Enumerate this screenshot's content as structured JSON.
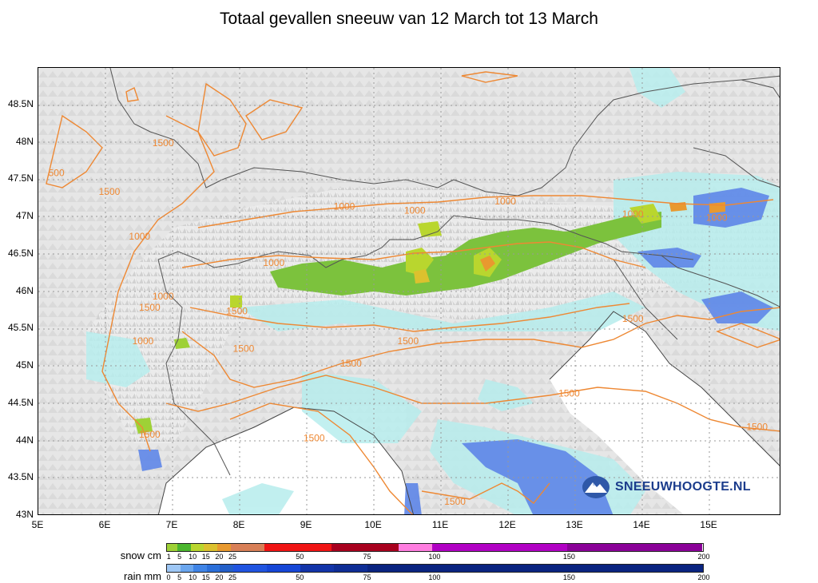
{
  "title": "Totaal gevallen sneeuw van 12 March tot 13 March",
  "map": {
    "lat_labels": [
      "48.5N",
      "48N",
      "47.5N",
      "47N",
      "46.5N",
      "46N",
      "45.5N",
      "45N",
      "44.5N",
      "44N",
      "43.5N",
      "43N"
    ],
    "lon_labels": [
      "5E",
      "6E",
      "7E",
      "8E",
      "9E",
      "10E",
      "11E",
      "12E",
      "13E",
      "14E",
      "15E"
    ],
    "contour_labels": [
      {
        "text": "1500",
        "lon": 6.7,
        "lat": 47.95
      },
      {
        "text": "500",
        "lon": 5.15,
        "lat": 47.55
      },
      {
        "text": "1500",
        "lon": 5.9,
        "lat": 47.3
      },
      {
        "text": "1000",
        "lon": 6.35,
        "lat": 46.7
      },
      {
        "text": "1000",
        "lon": 9.4,
        "lat": 47.1
      },
      {
        "text": "1000",
        "lon": 10.45,
        "lat": 47.05
      },
      {
        "text": "1000",
        "lon": 11.8,
        "lat": 47.17
      },
      {
        "text": "1000",
        "lon": 13.7,
        "lat": 47.0
      },
      {
        "text": "1000",
        "lon": 14.95,
        "lat": 46.95
      },
      {
        "text": "1000",
        "lon": 8.35,
        "lat": 46.35
      },
      {
        "text": "1000",
        "lon": 6.7,
        "lat": 45.9
      },
      {
        "text": "1500",
        "lon": 6.5,
        "lat": 45.75
      },
      {
        "text": "1500",
        "lon": 7.8,
        "lat": 45.7
      },
      {
        "text": "1000",
        "lon": 6.4,
        "lat": 45.3
      },
      {
        "text": "1500",
        "lon": 7.9,
        "lat": 45.2
      },
      {
        "text": "1500",
        "lon": 9.5,
        "lat": 45.0
      },
      {
        "text": "1500",
        "lon": 10.35,
        "lat": 45.3
      },
      {
        "text": "1500",
        "lon": 12.75,
        "lat": 44.6
      },
      {
        "text": "1500",
        "lon": 13.7,
        "lat": 45.6
      },
      {
        "text": "1500",
        "lon": 15.55,
        "lat": 44.15
      },
      {
        "text": "1500",
        "lon": 6.5,
        "lat": 44.05
      },
      {
        "text": "1500",
        "lon": 8.95,
        "lat": 44.0
      },
      {
        "text": "1500",
        "lon": 11.05,
        "lat": 43.15
      }
    ]
  },
  "logo": {
    "text": "SNEEUWHOOGTE.NL"
  },
  "legend": {
    "snow": {
      "label": "snow cm",
      "ticks": [
        1,
        5,
        10,
        15,
        20,
        25,
        50,
        75,
        100,
        150,
        200
      ],
      "colors": [
        "#9ed136",
        "#4bb62e",
        "#b9d62e",
        "#dcc12e",
        "#e8992f",
        "#d87f57",
        "#f01414",
        "#f01414",
        "#a8001e",
        "#a8001e",
        "#ff7de0",
        "#b100c4",
        "#b100c4",
        "#8a0098"
      ]
    },
    "rain": {
      "label": "rain mm",
      "ticks": [
        0,
        5,
        10,
        15,
        20,
        25,
        50,
        75,
        100,
        150,
        200
      ],
      "colors": [
        "#9ec7f5",
        "#6aa6ee",
        "#3f84e6",
        "#2b6fd9",
        "#235fc8",
        "#2054e0",
        "#1646d6",
        "#1234a8",
        "#0e2d95",
        "#0a2480"
      ]
    }
  },
  "colors": {
    "contour": "#ee8833",
    "border": "#555555",
    "sea": "#ffffff",
    "rain_light": "#b7eded",
    "rain_mid": "#5e86e8",
    "snow_green": "#7cc23d"
  }
}
